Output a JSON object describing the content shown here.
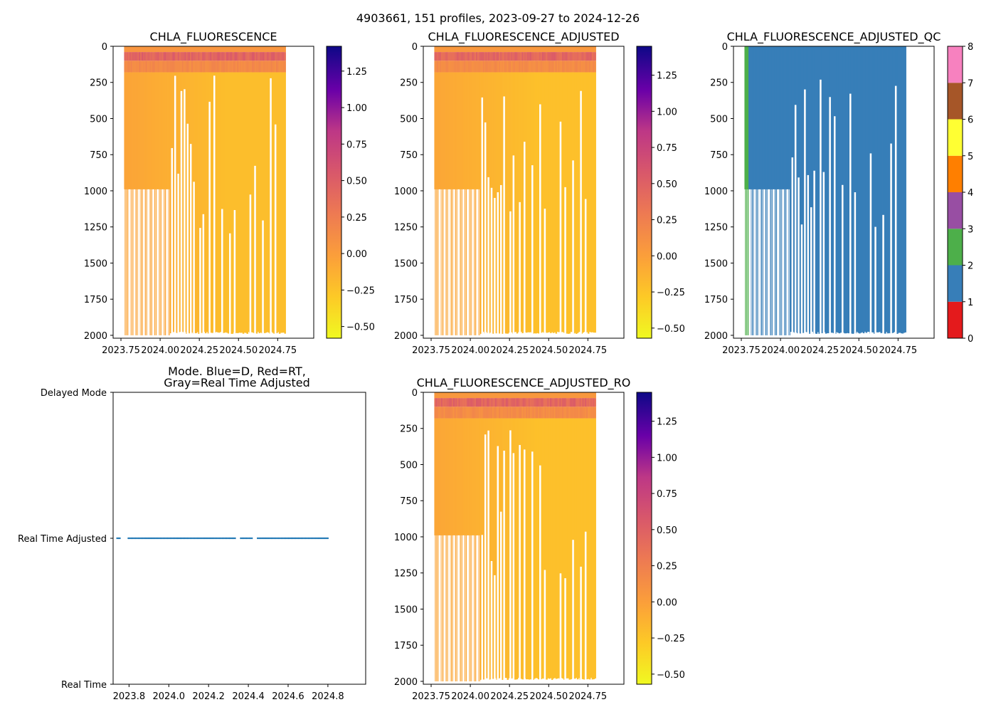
{
  "figure_title": "4903661, 151 profiles, 2023-09-27 to 2024-12-26",
  "colors": {
    "plasma_low": "#f0f921",
    "plasma_mid": "#e16462",
    "plasma_high": "#0d0887",
    "series_blue": "#1f77b4",
    "qc_1": "#377eb8",
    "qc_2": "#4daf4a"
  },
  "chart_data": [
    {
      "type": "heatmap",
      "title": "CHLA_FLUORESCENCE",
      "x_range": [
        2023.7,
        2024.98
      ],
      "x_ticks": [
        2023.75,
        2024.0,
        2024.25,
        2024.5,
        2024.75
      ],
      "x_tick_labels": [
        "2023.75",
        "2024.00",
        "2024.25",
        "2024.50",
        "2024.75"
      ],
      "y_range": [
        2020,
        0
      ],
      "y_ticks": [
        0,
        250,
        500,
        750,
        1000,
        1250,
        1500,
        1750,
        2000
      ],
      "y_tick_labels": [
        "0",
        "250",
        "500",
        "750",
        "1000",
        "1250",
        "1500",
        "1750",
        "2000"
      ],
      "colorbar": {
        "range": [
          -0.58,
          1.42
        ],
        "ticks": [
          -0.5,
          -0.25,
          0.0,
          0.25,
          0.5,
          0.75,
          1.0,
          1.25
        ],
        "tick_labels": [
          "−0.50",
          "−0.25",
          "0.00",
          "0.25",
          "0.50",
          "0.75",
          "1.00",
          "1.25"
        ],
        "colormap": "plasma_r"
      }
    },
    {
      "type": "heatmap",
      "title": "CHLA_FLUORESCENCE_ADJUSTED",
      "x_range": [
        2023.7,
        2024.98
      ],
      "x_ticks": [
        2023.75,
        2024.0,
        2024.25,
        2024.5,
        2024.75
      ],
      "x_tick_labels": [
        "2023.75",
        "2024.00",
        "2024.25",
        "2024.50",
        "2024.75"
      ],
      "y_range": [
        2020,
        0
      ],
      "y_ticks": [
        0,
        250,
        500,
        750,
        1000,
        1250,
        1500,
        1750,
        2000
      ],
      "y_tick_labels": [
        "0",
        "250",
        "500",
        "750",
        "1000",
        "1250",
        "1500",
        "1750",
        "2000"
      ],
      "colorbar": {
        "range": [
          -0.57,
          1.45
        ],
        "ticks": [
          -0.5,
          -0.25,
          0.0,
          0.25,
          0.5,
          0.75,
          1.0,
          1.25
        ],
        "tick_labels": [
          "−0.50",
          "−0.25",
          "0.00",
          "0.25",
          "0.50",
          "0.75",
          "1.00",
          "1.25"
        ],
        "colormap": "plasma_r"
      }
    },
    {
      "type": "heatmap",
      "title": "CHLA_FLUORESCENCE_ADJUSTED_QC",
      "x_range": [
        2023.7,
        2024.98
      ],
      "x_ticks": [
        2023.75,
        2024.0,
        2024.25,
        2024.5,
        2024.75
      ],
      "x_tick_labels": [
        "2023.75",
        "2024.00",
        "2024.25",
        "2024.50",
        "2024.75"
      ],
      "y_range": [
        2020,
        0
      ],
      "y_ticks": [
        0,
        250,
        500,
        750,
        1000,
        1250,
        1500,
        1750,
        2000
      ],
      "y_tick_labels": [
        "0",
        "250",
        "500",
        "750",
        "1000",
        "1250",
        "1500",
        "1750",
        "2000"
      ],
      "qc_values_present": [
        1,
        2
      ],
      "colorbar": {
        "range": [
          0,
          8
        ],
        "ticks": [
          0,
          1,
          2,
          3,
          4,
          5,
          6,
          7,
          8
        ],
        "tick_labels": [
          "0",
          "1",
          "2",
          "3",
          "4",
          "5",
          "6",
          "7",
          "8"
        ],
        "categories": [
          "#e41a1c",
          "#377eb8",
          "#4daf4a",
          "#984ea3",
          "#ff7f00",
          "#ffff33",
          "#a65628",
          "#f781bf",
          "#999999"
        ]
      }
    },
    {
      "type": "scatter",
      "title_line1": "Mode. Blue=D, Red=RT,",
      "title_line2": "Gray=Real Time Adjusted",
      "x_range": [
        2023.72,
        2024.99
      ],
      "x_ticks": [
        2023.8,
        2024.0,
        2024.2,
        2024.4,
        2024.6,
        2024.8
      ],
      "x_tick_labels": [
        "2023.8",
        "2024.0",
        "2024.2",
        "2024.4",
        "2024.6",
        "2024.8"
      ],
      "y_categories": [
        "Real Time",
        "Real Time Adjusted",
        "Delayed Mode"
      ],
      "y_range": [
        0,
        2
      ],
      "points_y": 1,
      "points_x_start": 2023.74,
      "points_x_end": 2024.8,
      "point_count": 151,
      "gaps": [
        [
          2023.76,
          2023.79
        ],
        [
          2024.34,
          2024.36
        ],
        [
          2024.42,
          2024.44
        ]
      ]
    },
    {
      "type": "heatmap",
      "title": "CHLA_FLUORESCENCE_ADJUSTED_RO",
      "x_range": [
        2023.7,
        2024.98
      ],
      "x_ticks": [
        2023.75,
        2024.0,
        2024.25,
        2024.5,
        2024.75
      ],
      "x_tick_labels": [
        "2023.75",
        "2024.00",
        "2024.25",
        "2024.50",
        "2024.75"
      ],
      "y_range": [
        2020,
        0
      ],
      "y_ticks": [
        0,
        250,
        500,
        750,
        1000,
        1250,
        1500,
        1750,
        2000
      ],
      "y_tick_labels": [
        "0",
        "250",
        "500",
        "750",
        "1000",
        "1250",
        "1500",
        "1750",
        "2000"
      ],
      "colorbar": {
        "range": [
          -0.57,
          1.45
        ],
        "ticks": [
          -0.5,
          -0.25,
          0.0,
          0.25,
          0.5,
          0.75,
          1.0,
          1.25
        ],
        "tick_labels": [
          "−0.50",
          "−0.25",
          "0.00",
          "0.25",
          "0.50",
          "0.75",
          "1.00",
          "1.25"
        ],
        "colormap": "plasma_r"
      }
    }
  ],
  "profile_data": {
    "start_x": 2023.77,
    "end_x": 2024.8,
    "profile_count": 151,
    "profiles_to_1000m_until": 2024.06,
    "near_surface_value": 0.35,
    "surface_max_value": 0.6,
    "deep_value_early": -0.05,
    "deep_value_late": -0.22,
    "gap_positions": [
      2023.8,
      2023.83,
      2023.86,
      2023.89,
      2023.92,
      2023.95,
      2023.98,
      2024.01,
      2024.04,
      2024.07,
      2024.09,
      2024.11,
      2024.13,
      2024.15,
      2024.17,
      2024.19,
      2024.21,
      2024.25,
      2024.27,
      2024.31,
      2024.34,
      2024.39,
      2024.44,
      2024.47,
      2024.57,
      2024.6,
      2024.65,
      2024.7,
      2024.73
    ]
  }
}
